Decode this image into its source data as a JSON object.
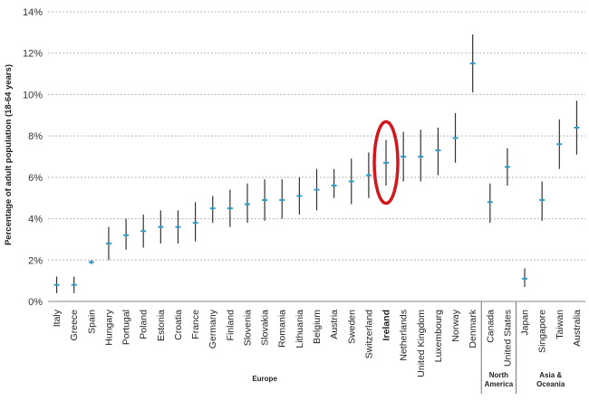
{
  "chart_data": {
    "type": "errorbar",
    "ylabel": "Percentage of adult population (18-64 years)",
    "ylim": [
      0,
      14
    ],
    "yticks": [
      "0%",
      "2%",
      "4%",
      "6%",
      "8%",
      "10%",
      "12%",
      "14%"
    ],
    "grid": true,
    "highlight": "Ireland",
    "colors": {
      "point": "#2e9ec7",
      "errorbar": "#333333",
      "grid": "#b8b8b8",
      "highlight": "#d0191f"
    },
    "categories": [
      "Italy",
      "Greece",
      "Spain",
      "Hungary",
      "Portugal",
      "Poland",
      "Estonia",
      "Croatia",
      "France",
      "Germany",
      "Finland",
      "Slovenia",
      "Slovakia",
      "Romania",
      "Lithuania",
      "Belgium",
      "Austria",
      "Sweden",
      "Switzerland",
      "Ireland",
      "Netherlands",
      "United Kingdom",
      "Luxembourg",
      "Norway",
      "Denmark",
      "Canada",
      "United States",
      "Japan",
      "Singapore",
      "Taiwan",
      "Australia"
    ],
    "groups": [
      {
        "label": [
          "Europe"
        ],
        "count": 25
      },
      {
        "label": [
          "North",
          "America"
        ],
        "count": 2
      },
      {
        "label": [
          "Asia &",
          "Oceania"
        ],
        "count": 4
      }
    ],
    "series": [
      {
        "values": [
          0.8,
          0.8,
          1.9,
          2.8,
          3.2,
          3.4,
          3.6,
          3.6,
          3.8,
          4.5,
          4.5,
          4.7,
          4.9,
          4.9,
          5.1,
          5.4,
          5.6,
          5.8,
          6.1,
          6.7,
          7.0,
          7.0,
          7.3,
          7.9,
          11.5,
          4.8,
          6.5,
          1.1,
          4.9,
          7.6,
          8.4
        ],
        "low": [
          0.4,
          0.4,
          1.8,
          2.0,
          2.5,
          2.6,
          2.8,
          2.8,
          2.9,
          3.8,
          3.6,
          3.8,
          3.9,
          4.0,
          4.2,
          4.4,
          5.0,
          4.7,
          5.0,
          5.6,
          5.8,
          5.8,
          6.1,
          6.7,
          10.1,
          3.8,
          5.6,
          0.7,
          3.9,
          6.4,
          7.1
        ],
        "high": [
          1.2,
          1.2,
          2.0,
          3.6,
          4.0,
          4.2,
          4.4,
          4.4,
          4.8,
          5.1,
          5.4,
          5.7,
          5.9,
          5.9,
          6.0,
          6.4,
          6.4,
          6.9,
          7.2,
          7.8,
          8.2,
          8.3,
          8.4,
          9.1,
          12.9,
          5.7,
          7.4,
          1.6,
          5.8,
          8.8,
          9.7
        ]
      }
    ]
  }
}
